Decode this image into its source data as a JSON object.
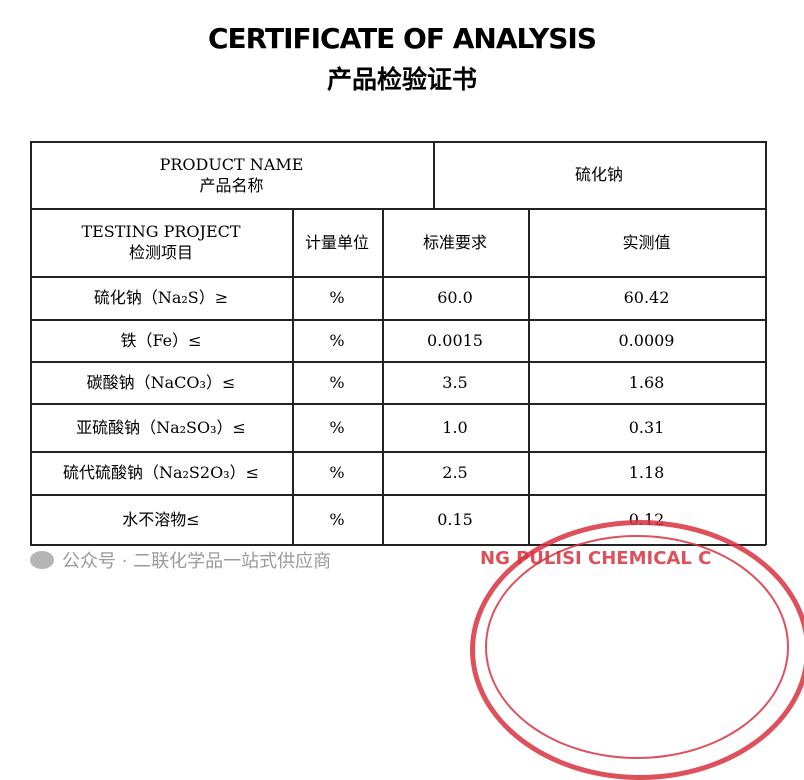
{
  "title_en": "CERTIFICATE OF ANALYSIS",
  "title_cn": "产品检验证书",
  "product": {
    "label_en": "PRODUCT NAME",
    "label_cn": "产品名称",
    "value": "硫化钠"
  },
  "headers": {
    "project_en": "TESTING PROJECT",
    "project_cn": "检测项目",
    "unit": "计量单位",
    "standard": "标准要求",
    "measured": "实测值"
  },
  "rows": [
    {
      "item": "硫化钠（Na₂S）≥",
      "unit": "%",
      "standard": "60.0",
      "measured": "60.42"
    },
    {
      "item": "铁（Fe）≤",
      "unit": "%",
      "standard": "0.0015",
      "measured": "0.0009"
    },
    {
      "item": "碳酸钠（NaCO₃）≤",
      "unit": "%",
      "standard": "3.5",
      "measured": "1.68"
    },
    {
      "item": "亚硫酸钠（Na₂SO₃）≤",
      "unit": "%",
      "standard": "1.0",
      "measured": "0.31"
    },
    {
      "item": "硫代硫酸钠（Na₂S2O₃）≤",
      "unit": "%",
      "standard": "2.5",
      "measured": "1.18"
    },
    {
      "item": "水不溶物≤",
      "unit": "%",
      "standard": "0.15",
      "measured": "0.12"
    }
  ],
  "stamp_text": "NG PULISI CHEMICAL C",
  "watermark": "公众号 · 二联化学品一站式供应商"
}
